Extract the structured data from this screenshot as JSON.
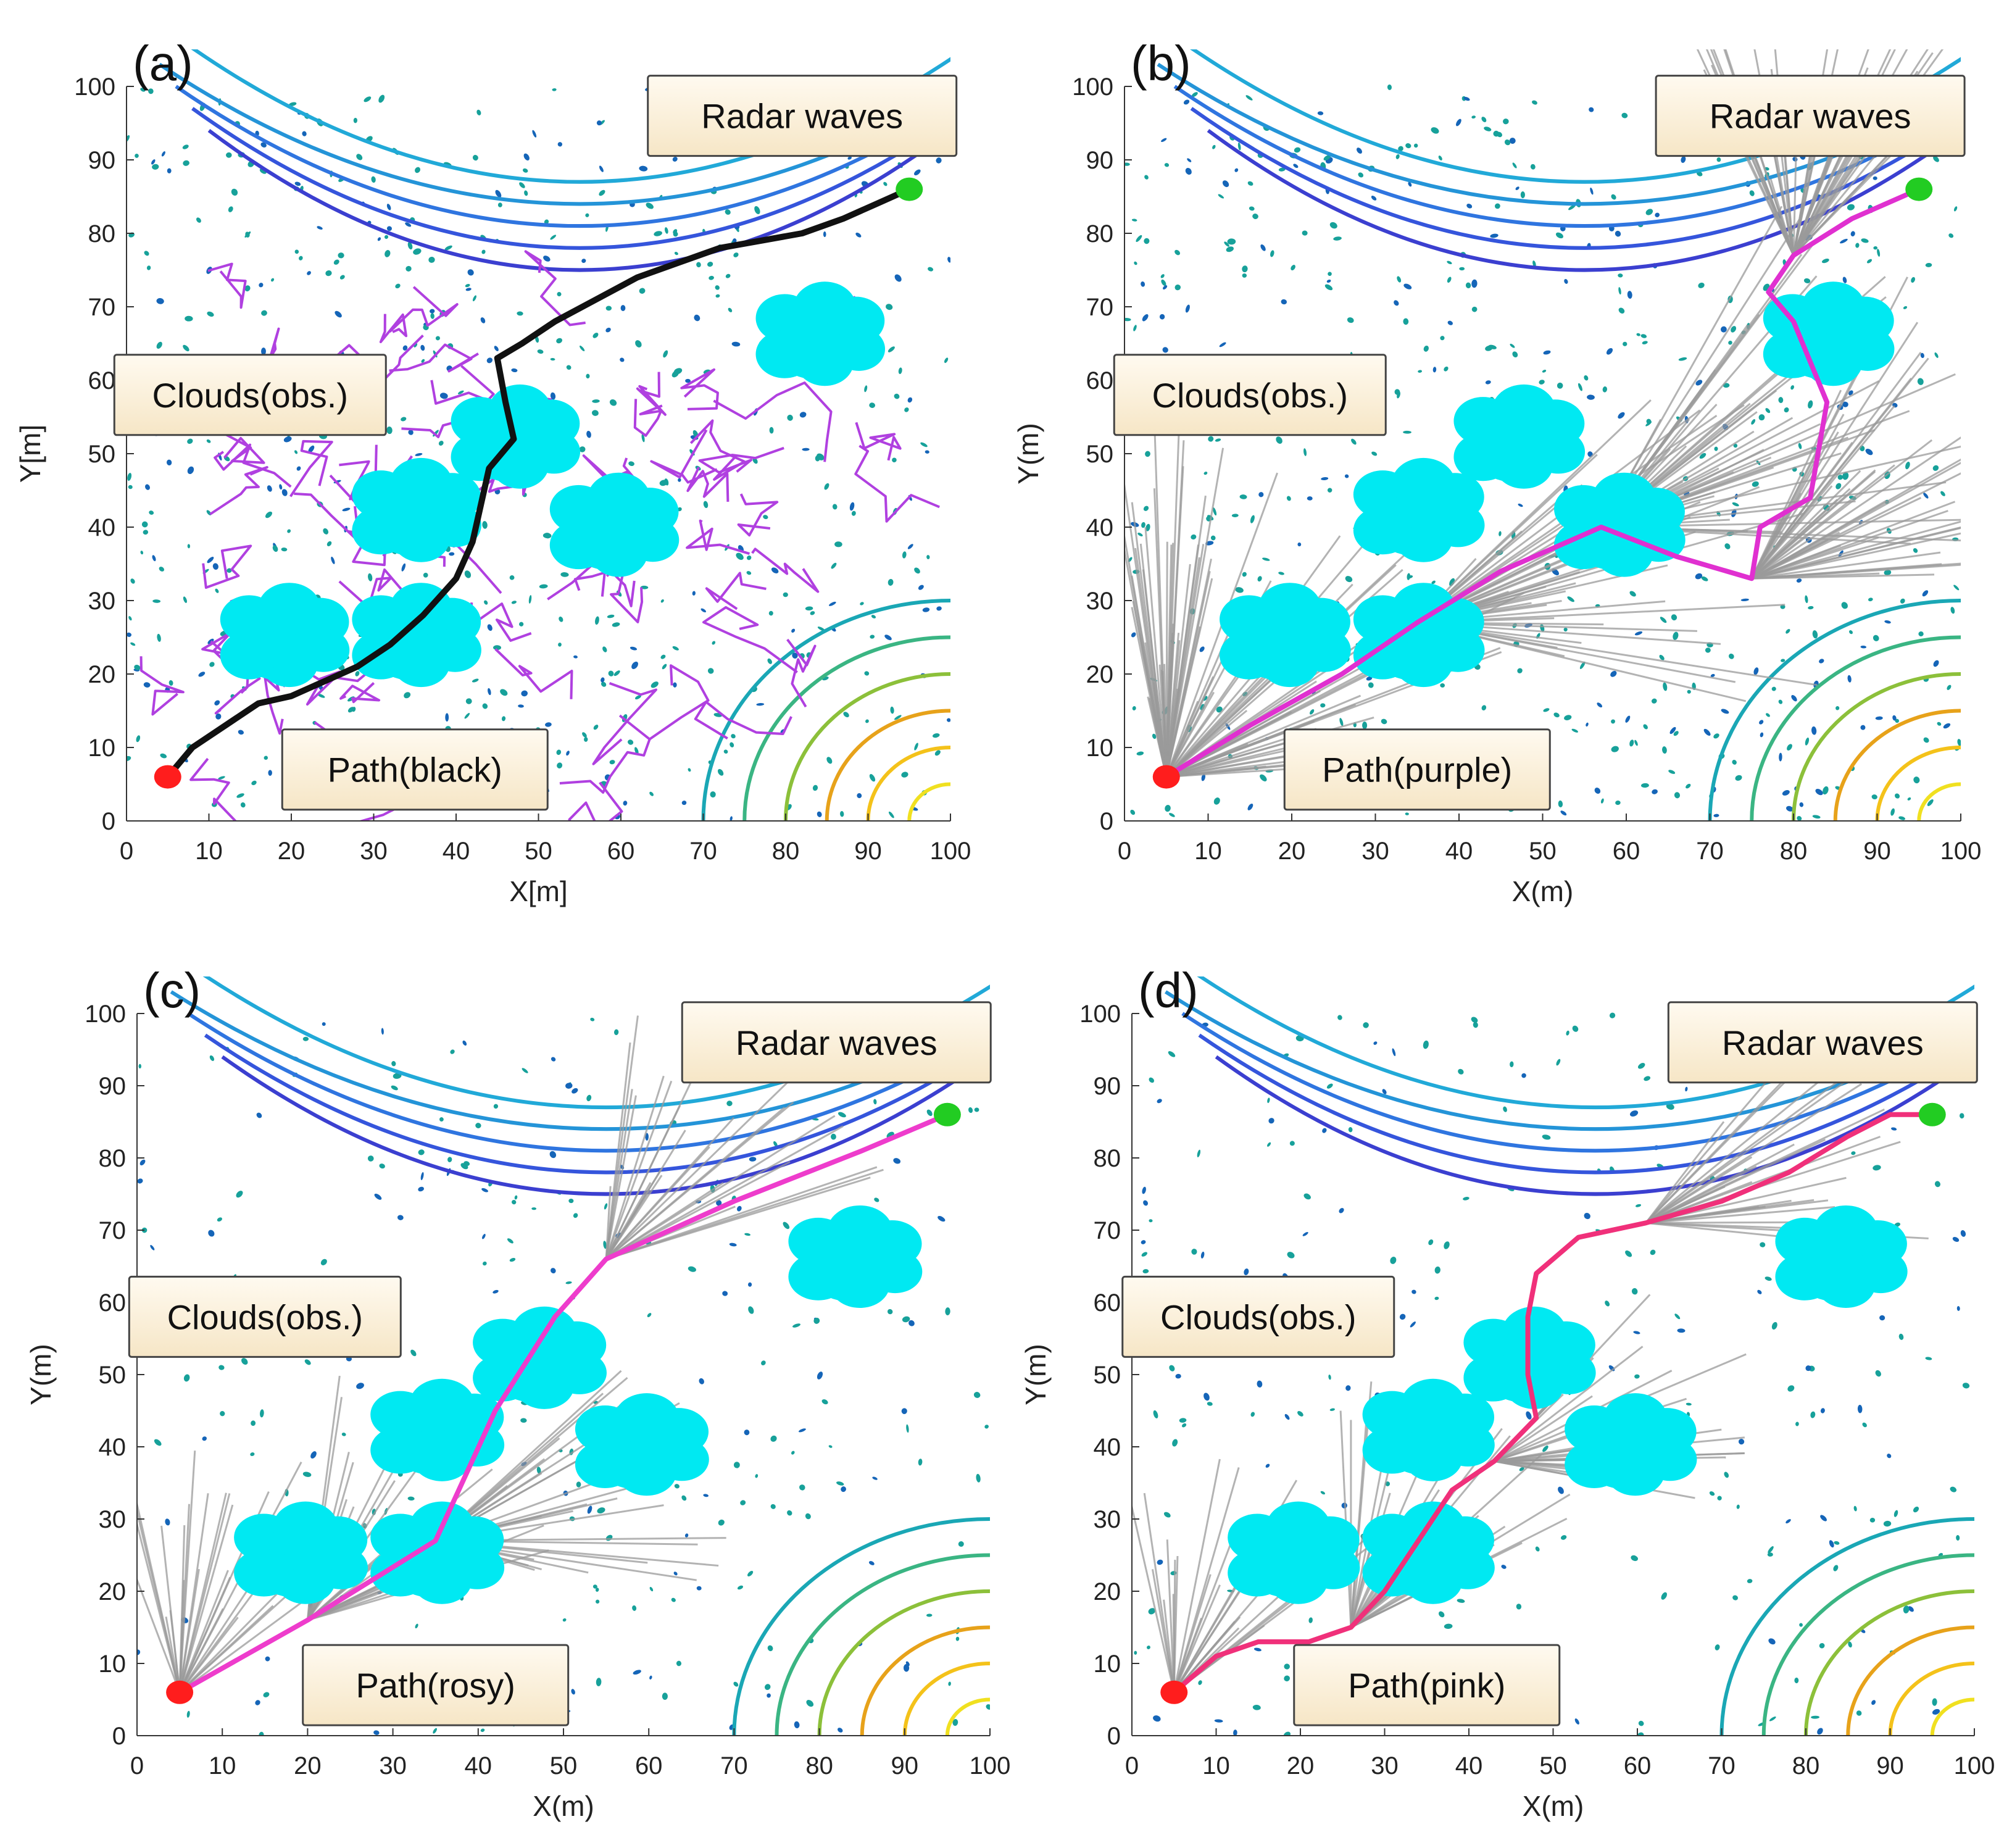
{
  "chart_data": [
    {
      "type": "line",
      "panel_label": "(a)",
      "xlabel": "X[m]",
      "ylabel": "Y[m]",
      "xlim": [
        0,
        100
      ],
      "ylim": [
        0,
        100
      ],
      "xticks": [
        0,
        10,
        20,
        30,
        40,
        50,
        60,
        70,
        80,
        90,
        100
      ],
      "yticks": [
        0,
        10,
        20,
        30,
        40,
        50,
        60,
        70,
        80,
        90,
        100
      ],
      "xtick_labels": [
        "0",
        "10",
        "20",
        "30",
        "40",
        "50",
        "60",
        "70",
        "80",
        "90",
        "100"
      ],
      "ytick_labels": [
        "0",
        "10",
        "20",
        "30",
        "40",
        "50",
        "60",
        "70",
        "80",
        "90",
        "100"
      ],
      "annotations": {
        "radar": "Radar waves",
        "clouds": "Clouds(obs.)",
        "path": "Path(black)"
      },
      "start": [
        5,
        6
      ],
      "goal": [
        95,
        86
      ],
      "path_color": "#111111",
      "tree_color": "#b040e0",
      "tree_style": "branch",
      "clouds": [
        [
          19,
          25
        ],
        [
          35,
          25
        ],
        [
          35,
          42
        ],
        [
          47,
          52
        ],
        [
          59,
          40
        ],
        [
          84,
          66
        ]
      ],
      "path": [
        [
          5,
          6
        ],
        [
          8,
          10
        ],
        [
          12,
          13
        ],
        [
          16,
          16
        ],
        [
          20,
          17
        ],
        [
          24,
          19
        ],
        [
          28,
          21
        ],
        [
          32,
          24
        ],
        [
          36,
          28
        ],
        [
          40,
          33
        ],
        [
          42,
          38
        ],
        [
          43,
          43
        ],
        [
          44,
          48
        ],
        [
          47,
          52
        ],
        [
          46,
          57
        ],
        [
          45,
          63
        ],
        [
          48,
          65
        ],
        [
          52,
          68
        ],
        [
          57,
          71
        ],
        [
          62,
          74
        ],
        [
          67,
          76
        ],
        [
          72,
          78
        ],
        [
          77,
          79
        ],
        [
          82,
          80
        ],
        [
          87,
          82
        ],
        [
          91,
          84
        ],
        [
          95,
          86
        ]
      ]
    },
    {
      "type": "line",
      "panel_label": "(b)",
      "xlabel": "X(m)",
      "ylabel": "Y(m)",
      "xlim": [
        0,
        100
      ],
      "ylim": [
        0,
        100
      ],
      "xticks": [
        0,
        10,
        20,
        30,
        40,
        50,
        60,
        70,
        80,
        90,
        100
      ],
      "yticks": [
        0,
        10,
        20,
        30,
        40,
        50,
        60,
        70,
        80,
        90,
        100
      ],
      "xtick_labels": [
        "0",
        "10",
        "20",
        "30",
        "40",
        "50",
        "60",
        "70",
        "80",
        "90",
        "100"
      ],
      "ytick_labels": [
        "0",
        "10",
        "20",
        "30",
        "40",
        "50",
        "60",
        "70",
        "80",
        "90",
        "100"
      ],
      "annotations": {
        "radar": "Radar waves",
        "clouds": "Clouds(obs.)",
        "path": "Path(purple)"
      },
      "start": [
        5,
        6
      ],
      "goal": [
        95,
        86
      ],
      "path_color": "#e030d0",
      "tree_color": "#9a9a9a",
      "tree_style": "fan",
      "clouds": [
        [
          19,
          25
        ],
        [
          35,
          25
        ],
        [
          35,
          42
        ],
        [
          47,
          52
        ],
        [
          59,
          40
        ],
        [
          84,
          66
        ]
      ],
      "path": [
        [
          5,
          6
        ],
        [
          15,
          13
        ],
        [
          26,
          20
        ],
        [
          35,
          27
        ],
        [
          45,
          34
        ],
        [
          57,
          40
        ],
        [
          66,
          36
        ],
        [
          75,
          33
        ],
        [
          76,
          40
        ],
        [
          82,
          44
        ],
        [
          84,
          57
        ],
        [
          80,
          68
        ],
        [
          77,
          72
        ],
        [
          80,
          77
        ],
        [
          87,
          82
        ],
        [
          95,
          86
        ]
      ]
    },
    {
      "type": "line",
      "panel_label": "(c)",
      "xlabel": "X(m)",
      "ylabel": "Y(m)",
      "xlim": [
        0,
        100
      ],
      "ylim": [
        0,
        100
      ],
      "xticks": [
        0,
        10,
        20,
        30,
        40,
        50,
        60,
        70,
        80,
        90,
        100
      ],
      "yticks": [
        0,
        10,
        20,
        30,
        40,
        50,
        60,
        70,
        80,
        90,
        100
      ],
      "xtick_labels": [
        "0",
        "10",
        "20",
        "30",
        "40",
        "50",
        "60",
        "70",
        "80",
        "90",
        "100"
      ],
      "ytick_labels": [
        "0",
        "10",
        "20",
        "30",
        "40",
        "50",
        "60",
        "70",
        "80",
        "90",
        "100"
      ],
      "annotations": {
        "radar": "Radar waves",
        "clouds": "Clouds(obs.)",
        "path": "Path(rosy)"
      },
      "start": [
        5,
        6
      ],
      "goal": [
        95,
        86
      ],
      "path_color": "#ee3ccc",
      "tree_color": "#9a9a9a",
      "tree_style": "fan",
      "clouds": [
        [
          19,
          25
        ],
        [
          35,
          25
        ],
        [
          35,
          42
        ],
        [
          47,
          52
        ],
        [
          59,
          40
        ],
        [
          84,
          66
        ]
      ],
      "path": [
        [
          5,
          6
        ],
        [
          20,
          16
        ],
        [
          35,
          27
        ],
        [
          42,
          45
        ],
        [
          49,
          58
        ],
        [
          55,
          66
        ],
        [
          70,
          74
        ],
        [
          85,
          81
        ],
        [
          95,
          86
        ]
      ]
    },
    {
      "type": "line",
      "panel_label": "(d)",
      "xlabel": "X(m)",
      "ylabel": "Y(m)",
      "xlim": [
        0,
        100
      ],
      "ylim": [
        0,
        100
      ],
      "xticks": [
        0,
        10,
        20,
        30,
        40,
        50,
        60,
        70,
        80,
        90,
        100
      ],
      "yticks": [
        0,
        10,
        20,
        30,
        40,
        50,
        60,
        70,
        80,
        90,
        100
      ],
      "xtick_labels": [
        "0",
        "10",
        "20",
        "30",
        "40",
        "50",
        "60",
        "70",
        "80",
        "90",
        "100"
      ],
      "ytick_labels": [
        "0",
        "10",
        "20",
        "30",
        "40",
        "50",
        "60",
        "70",
        "80",
        "90",
        "100"
      ],
      "annotations": {
        "radar": "Radar waves",
        "clouds": "Clouds(obs.)",
        "path": "Path(pink)"
      },
      "start": [
        5,
        6
      ],
      "goal": [
        95,
        86
      ],
      "path_color": "#f0307a",
      "tree_color": "#9a9a9a",
      "tree_style": "fan",
      "clouds": [
        [
          19,
          25
        ],
        [
          35,
          25
        ],
        [
          35,
          42
        ],
        [
          47,
          52
        ],
        [
          59,
          40
        ],
        [
          84,
          66
        ]
      ],
      "path": [
        [
          5,
          6
        ],
        [
          10,
          11
        ],
        [
          15,
          13
        ],
        [
          21,
          13
        ],
        [
          26,
          15
        ],
        [
          30,
          20
        ],
        [
          34,
          27
        ],
        [
          38,
          34
        ],
        [
          43,
          38
        ],
        [
          48,
          44
        ],
        [
          47,
          50
        ],
        [
          47,
          58
        ],
        [
          48,
          64
        ],
        [
          53,
          69
        ],
        [
          61,
          71
        ],
        [
          70,
          74
        ],
        [
          78,
          78
        ],
        [
          85,
          83
        ],
        [
          90,
          86
        ],
        [
          95,
          86
        ]
      ]
    }
  ],
  "colors": {
    "radar_top": [
      "#3b3fd0",
      "#3555dc",
      "#2f75e0",
      "#2494d8",
      "#21a9d8"
    ],
    "radar_corner": [
      "#1aa7b5",
      "#3ab583",
      "#8cc03a",
      "#e7a21a",
      "#f4c21a",
      "#f0e020"
    ],
    "cloud": "#00e9f2",
    "dots": [
      "#17a19a",
      "#1565b8"
    ],
    "start": "#ff1d1d",
    "goal": "#22cc22",
    "box_fill": "#fdf0d8"
  }
}
